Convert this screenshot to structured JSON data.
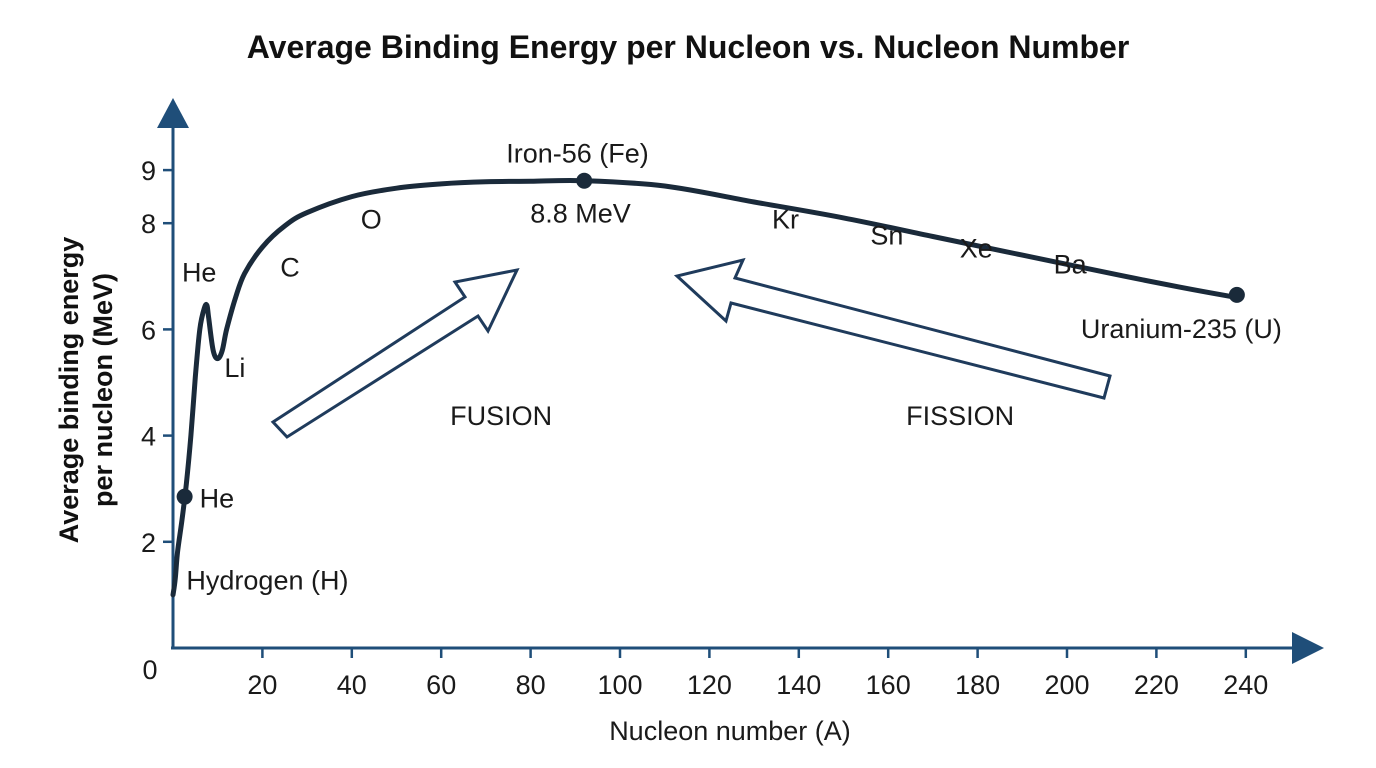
{
  "chart_data": {
    "type": "line",
    "title": "Average Binding Energy per Nucleon vs. Nucleon Number",
    "xlabel": "Nucleon number (A)",
    "ylabel_line1": "Average binding energy",
    "ylabel_line2": "per nucleon (MeV)",
    "xlim": [
      0,
      255
    ],
    "ylim": [
      0,
      10
    ],
    "origin_label": "0",
    "x_ticks": [
      20,
      40,
      60,
      80,
      100,
      120,
      140,
      160,
      180,
      200,
      220,
      240
    ],
    "x_tick_labels": [
      "20",
      "40",
      "60",
      "80",
      "100",
      "120",
      "140",
      "160",
      "180",
      "200",
      "220",
      "240"
    ],
    "y_ticks": [
      2,
      4,
      6,
      8,
      9
    ],
    "y_tick_labels": [
      "2",
      "4",
      "6",
      "8",
      "9"
    ],
    "grid": false,
    "series": [
      {
        "x": [
          0,
          0.5,
          1,
          2,
          3,
          4,
          5,
          6,
          7,
          7.6,
          8,
          9,
          10,
          11,
          12,
          14,
          16,
          20,
          25,
          30,
          40,
          50,
          60,
          70,
          80,
          92,
          110,
          130,
          150,
          170,
          190,
          210,
          225,
          238
        ],
        "y": [
          1.0,
          1.3,
          1.8,
          2.4,
          3.1,
          4.0,
          5.1,
          6.0,
          6.4,
          6.45,
          6.2,
          5.6,
          5.45,
          5.6,
          6.0,
          6.6,
          7.05,
          7.55,
          7.95,
          8.2,
          8.5,
          8.66,
          8.74,
          8.78,
          8.79,
          8.8,
          8.7,
          8.4,
          8.1,
          7.75,
          7.4,
          7.05,
          6.8,
          6.6
        ]
      }
    ],
    "points": [
      {
        "x": 2.6,
        "y": 2.85,
        "label": "He"
      },
      {
        "x": 92,
        "y": 8.8,
        "label_above": "Iron-56 (Fe)",
        "label_below": "8.8 MeV"
      },
      {
        "x": 238,
        "y": 6.65,
        "label": "Uranium-235 (U)"
      }
    ],
    "annotations": [
      {
        "text": "Hydrogen (H)",
        "x": 3,
        "y": 1.1
      },
      {
        "text": "He",
        "x": 2,
        "y": 6.9
      },
      {
        "text": "Li",
        "x": 11.5,
        "y": 5.1
      },
      {
        "text": "C",
        "x": 24,
        "y": 7.0
      },
      {
        "text": "O",
        "x": 42,
        "y": 7.9
      },
      {
        "text": "Kr",
        "x": 134,
        "y": 7.9
      },
      {
        "text": "Sn",
        "x": 156,
        "y": 7.6
      },
      {
        "text": "Xe",
        "x": 176,
        "y": 7.35
      },
      {
        "text": "Ba",
        "x": 197,
        "y": 7.05
      },
      {
        "text": "FUSION",
        "x": 62,
        "y": 4.2
      },
      {
        "text": "FISSION",
        "x": 164,
        "y": 4.2
      }
    ]
  },
  "colors": {
    "axis": "#1f4e79",
    "curve": "#1a2a3a",
    "arrow_stroke": "#1f3b5c",
    "text": "#1a1a1a"
  }
}
